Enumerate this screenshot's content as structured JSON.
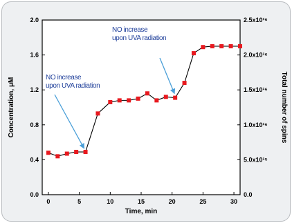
{
  "chart_data": {
    "type": "line",
    "xlabel": "Time, min",
    "ylabel": "Concentration, μM",
    "y2label": "Total number of spins",
    "xlim": [
      -1,
      31
    ],
    "ylim": [
      0.0,
      2.0
    ],
    "y2lim": [
      0.0,
      2.5e+16
    ],
    "x_ticks": [
      {
        "value": 0,
        "label": "0"
      },
      {
        "value": 5,
        "label": "5"
      },
      {
        "value": 10,
        "label": "10"
      },
      {
        "value": 15,
        "label": "15"
      },
      {
        "value": 20,
        "label": "20"
      },
      {
        "value": 25,
        "label": "25"
      },
      {
        "value": 30,
        "label": "30"
      }
    ],
    "y_ticks": [
      {
        "value": 0.0,
        "label": "0.0"
      },
      {
        "value": 0.4,
        "label": "0.4"
      },
      {
        "value": 0.8,
        "label": "0.8"
      },
      {
        "value": 1.2,
        "label": "1.2"
      },
      {
        "value": 1.6,
        "label": "1.6"
      },
      {
        "value": 2.0,
        "label": "2.0"
      }
    ],
    "y2_ticks": [
      {
        "value": 0.0,
        "label": "0.0"
      },
      {
        "value": 0.5,
        "label": "5.0x10¹⁵"
      },
      {
        "value": 1.0,
        "label": "1.0x10¹⁶"
      },
      {
        "value": 1.5,
        "label": "1.5x10¹⁶"
      },
      {
        "value": 2.0,
        "label": "2.0x10¹⁶"
      },
      {
        "value": 2.5,
        "label": "2.5x10¹⁶"
      }
    ],
    "grid": false,
    "series": [
      {
        "color": "#e8191f",
        "line_color": "#000000",
        "points": [
          {
            "x": 0,
            "y": 0.48
          },
          {
            "x": 1.5,
            "y": 0.44
          },
          {
            "x": 3,
            "y": 0.47
          },
          {
            "x": 4.5,
            "y": 0.49
          },
          {
            "x": 6,
            "y": 0.49
          },
          {
            "x": 8,
            "y": 0.93
          },
          {
            "x": 10,
            "y": 1.06
          },
          {
            "x": 11.5,
            "y": 1.08
          },
          {
            "x": 13,
            "y": 1.08
          },
          {
            "x": 14.5,
            "y": 1.1
          },
          {
            "x": 16,
            "y": 1.16
          },
          {
            "x": 17.5,
            "y": 1.08
          },
          {
            "x": 19,
            "y": 1.12
          },
          {
            "x": 20.5,
            "y": 1.11
          },
          {
            "x": 22,
            "y": 1.28
          },
          {
            "x": 23.5,
            "y": 1.62
          },
          {
            "x": 25,
            "y": 1.69
          },
          {
            "x": 26.5,
            "y": 1.7
          },
          {
            "x": 28,
            "y": 1.7
          },
          {
            "x": 29.5,
            "y": 1.7
          },
          {
            "x": 31,
            "y": 1.7
          }
        ]
      }
    ],
    "annotations": [
      {
        "text_line1": "NO increase",
        "text_line2": "upon UVA radiation",
        "points_to": {
          "x": 6,
          "y": 0.49
        }
      },
      {
        "text_line1": "NO increase",
        "text_line2": "upon UVA radiation",
        "points_to": {
          "x": 20.5,
          "y": 1.11
        }
      }
    ]
  }
}
